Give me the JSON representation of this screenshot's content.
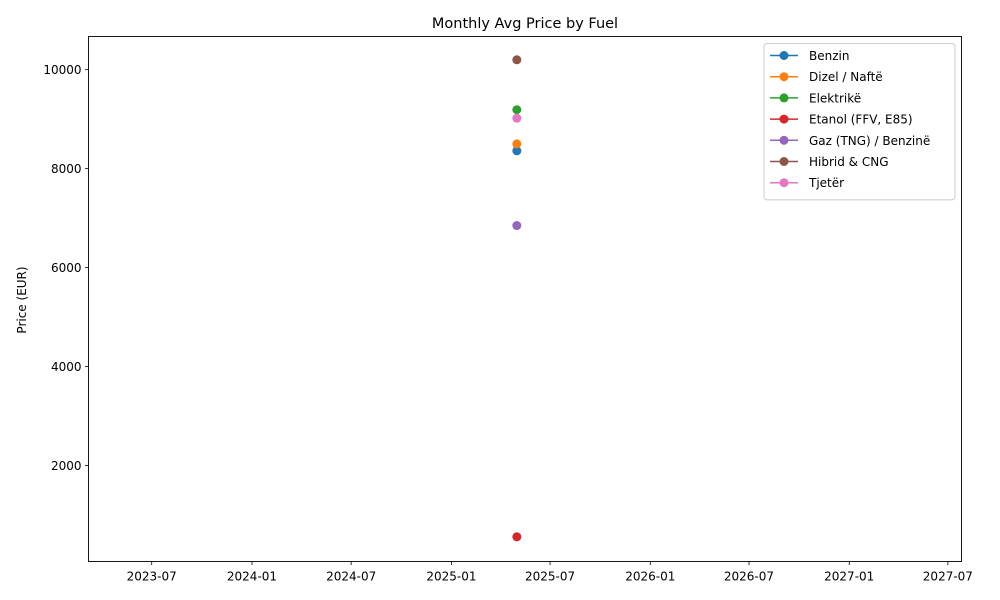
{
  "chart_data": {
    "type": "line",
    "title": "Monthly Avg Price by Fuel",
    "xlabel": "",
    "ylabel": "Price (EUR)",
    "x_ticks": [
      "2023-07",
      "2024-01",
      "2024-07",
      "2025-01",
      "2025-07",
      "2026-01",
      "2026-07",
      "2027-01",
      "2027-07"
    ],
    "y_ticks": [
      2000,
      4000,
      6000,
      8000,
      10000
    ],
    "xlim": [
      "2023-03-07",
      "2027-07-26"
    ],
    "ylim": [
      60,
      10670
    ],
    "grid": false,
    "legend_position": "top-right",
    "series": [
      {
        "name": "Benzin",
        "color": "#1f77b4",
        "points": [
          {
            "x": "2025-05-01",
            "y": 8360
          }
        ]
      },
      {
        "name": "Dizel / Naftë",
        "color": "#ff7f0e",
        "points": [
          {
            "x": "2025-05-01",
            "y": 8500
          }
        ]
      },
      {
        "name": "Elektrikë",
        "color": "#2ca02c",
        "points": [
          {
            "x": "2025-05-01",
            "y": 9190
          }
        ]
      },
      {
        "name": "Etanol (FFV, E85)",
        "color": "#d62728",
        "points": [
          {
            "x": "2025-05-01",
            "y": 560
          }
        ]
      },
      {
        "name": "Gaz (TNG) / Benzinë",
        "color": "#9467bd",
        "points": [
          {
            "x": "2025-05-01",
            "y": 6850
          }
        ]
      },
      {
        "name": "Hibrid & CNG",
        "color": "#8c564b",
        "points": [
          {
            "x": "2025-05-01",
            "y": 10200
          }
        ]
      },
      {
        "name": "Tjetër",
        "color": "#e377c2",
        "points": [
          {
            "x": "2025-05-01",
            "y": 9020
          }
        ]
      }
    ]
  }
}
